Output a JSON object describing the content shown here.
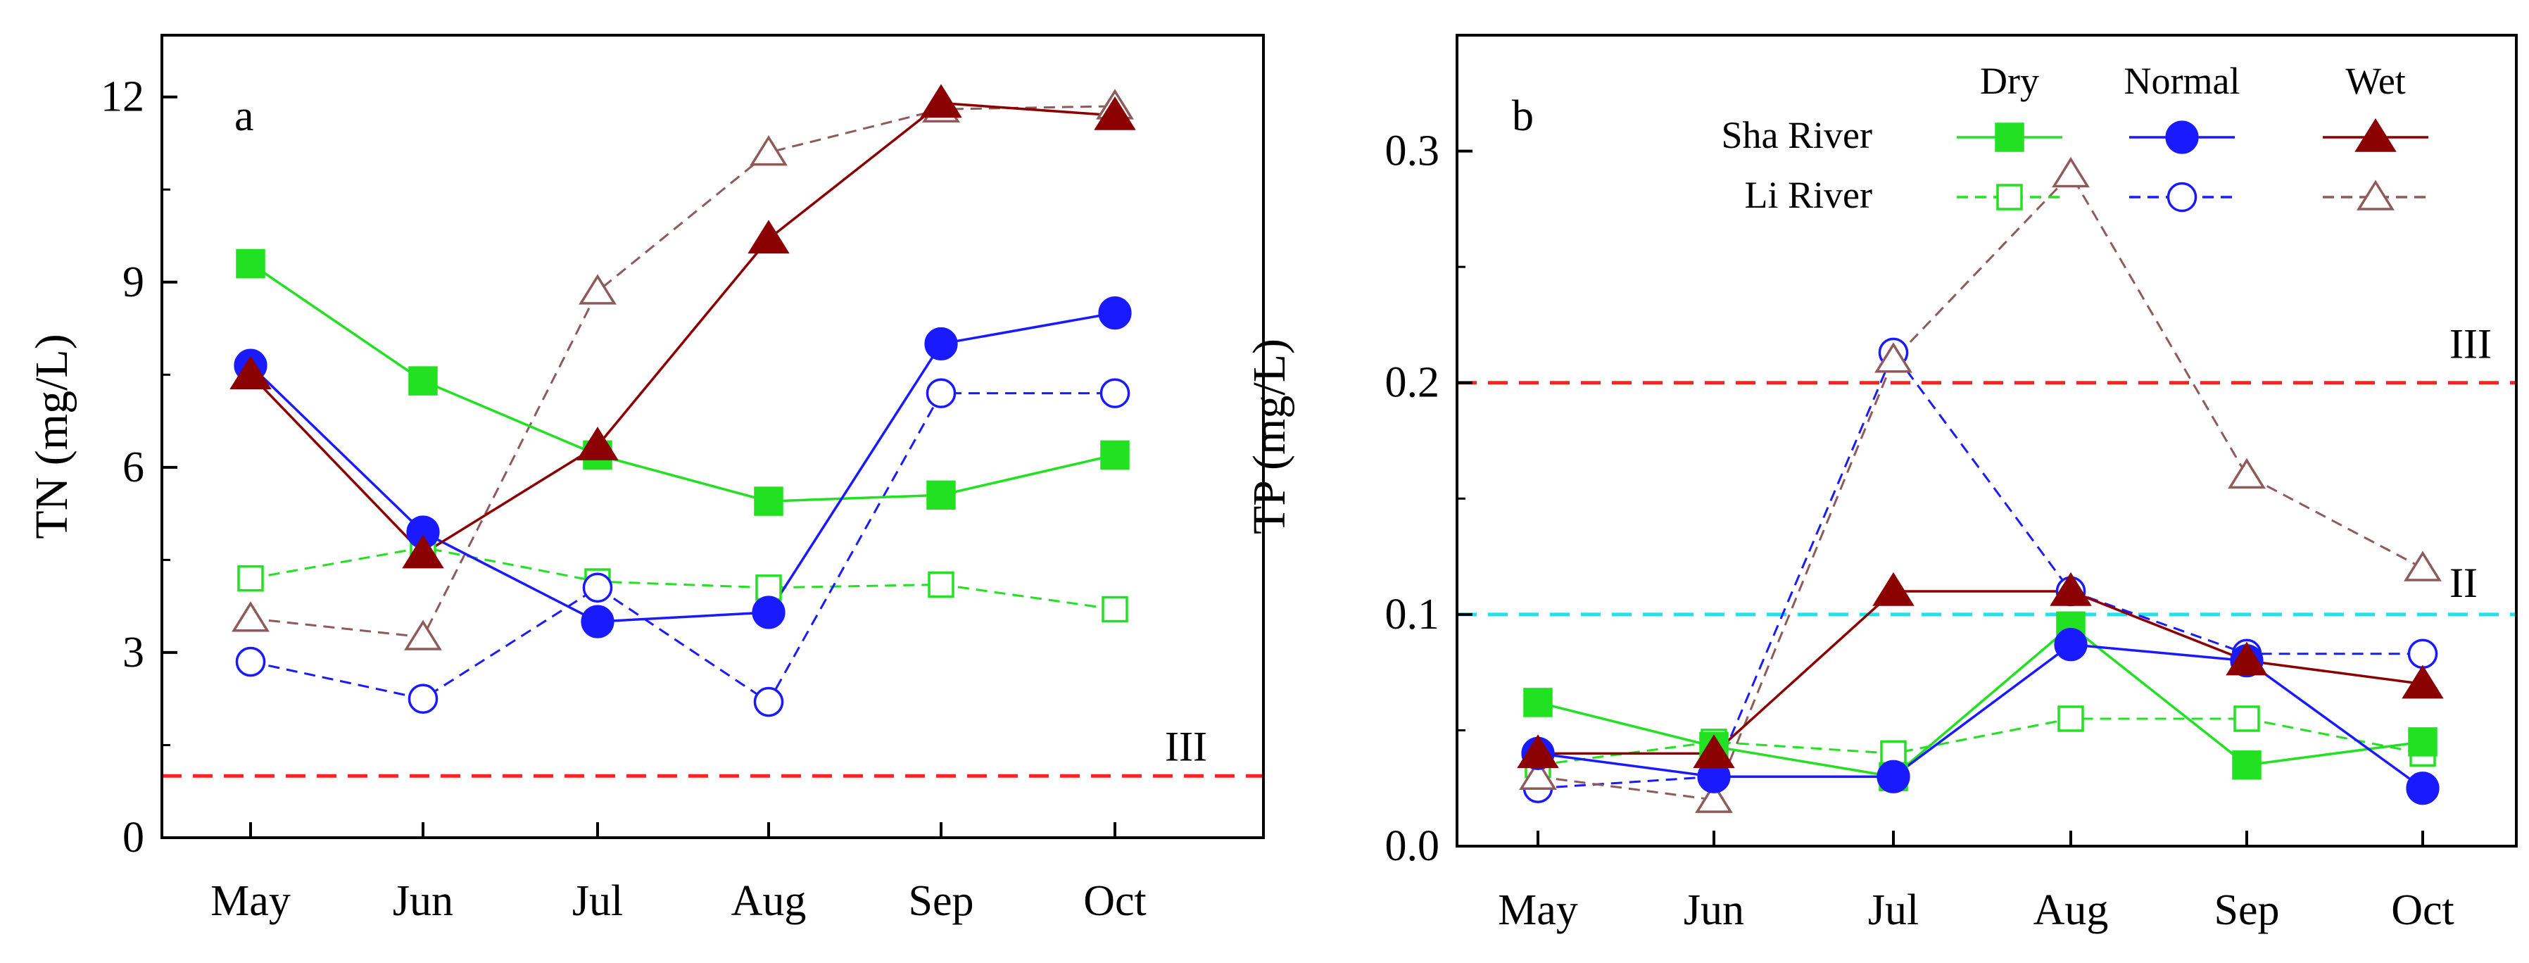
{
  "chart_data": [
    {
      "panel": "a",
      "type": "line",
      "ylabel": "TN (mg/L)",
      "xlabel": "",
      "ylim": [
        0,
        13
      ],
      "yticks": [
        "0",
        "3",
        "6",
        "9",
        "12"
      ],
      "categories": [
        "May",
        "Jun",
        "Jul",
        "Aug",
        "Sep",
        "Oct"
      ],
      "series": [
        {
          "name": "Sha River Dry",
          "river": "Sha River",
          "season": "Dry",
          "values": [
            9.3,
            7.4,
            6.2,
            5.45,
            5.55,
            6.2
          ]
        },
        {
          "name": "Sha River Normal",
          "river": "Sha River",
          "season": "Normal",
          "values": [
            7.65,
            4.95,
            3.5,
            3.65,
            8.0,
            8.5
          ]
        },
        {
          "name": "Sha River Wet",
          "river": "Sha River",
          "season": "Wet",
          "values": [
            7.5,
            4.6,
            6.35,
            9.7,
            11.9,
            11.7
          ]
        },
        {
          "name": "Li River Dry",
          "river": "Li River",
          "season": "Dry",
          "values": [
            4.2,
            4.7,
            4.15,
            4.05,
            4.1,
            3.7
          ]
        },
        {
          "name": "Li River Normal",
          "river": "Li River",
          "season": "Normal",
          "values": [
            2.85,
            2.25,
            4.05,
            2.2,
            7.2,
            7.2
          ]
        },
        {
          "name": "Li River Wet",
          "river": "Li River",
          "season": "Wet",
          "values": [
            3.55,
            3.25,
            8.85,
            11.1,
            11.8,
            11.85
          ]
        }
      ],
      "reference_lines": [
        {
          "label": "III",
          "value": 1.0,
          "color": "#ff2020"
        }
      ]
    },
    {
      "panel": "b",
      "type": "line",
      "ylabel": "TP (mg/L)",
      "xlabel": "",
      "ylim": [
        0,
        0.35
      ],
      "yticks": [
        "0.0",
        "0.1",
        "0.2",
        "0.3"
      ],
      "categories": [
        "May",
        "Jun",
        "Jul",
        "Aug",
        "Sep",
        "Oct"
      ],
      "series": [
        {
          "name": "Sha River Dry",
          "river": "Sha River",
          "season": "Dry",
          "values": [
            0.062,
            0.043,
            0.03,
            0.095,
            0.035,
            0.045
          ]
        },
        {
          "name": "Sha River Normal",
          "river": "Sha River",
          "season": "Normal",
          "values": [
            0.04,
            0.03,
            0.03,
            0.087,
            0.08,
            0.025
          ]
        },
        {
          "name": "Sha River Wet",
          "river": "Sha River",
          "season": "Wet",
          "values": [
            0.04,
            0.04,
            0.11,
            0.11,
            0.08,
            0.07
          ]
        },
        {
          "name": "Li River Dry",
          "river": "Li River",
          "season": "Dry",
          "values": [
            0.035,
            0.045,
            0.04,
            0.055,
            0.055,
            0.04
          ]
        },
        {
          "name": "Li River Normal",
          "river": "Li River",
          "season": "Normal",
          "values": [
            0.025,
            0.03,
            0.213,
            0.11,
            0.083,
            0.083
          ]
        },
        {
          "name": "Li River Wet",
          "river": "Li River",
          "season": "Wet",
          "values": [
            0.03,
            0.02,
            0.21,
            0.29,
            0.16,
            0.12
          ]
        }
      ],
      "reference_lines": [
        {
          "label": "III",
          "value": 0.2,
          "color": "#ff2020"
        },
        {
          "label": "II",
          "value": 0.1,
          "color": "#22e0f0"
        }
      ]
    }
  ],
  "legend": {
    "columns": [
      "Dry",
      "Normal",
      "Wet"
    ],
    "rows": [
      "Sha River",
      "Li River"
    ]
  },
  "colors": {
    "Dry": "#22e022",
    "Normal": "#1a1aff",
    "Wet": "#8b0000",
    "Wet_dashed": "#8f5a5a",
    "axis": "#000000"
  }
}
